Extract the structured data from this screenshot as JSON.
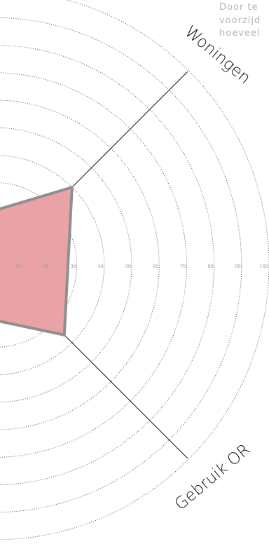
{
  "intro_lines": [
    "Door te",
    "voorzijd",
    "hoeveel"
  ],
  "chart_data": {
    "type": "radar",
    "axes": [
      "Woningen",
      "Gebruik OR"
    ],
    "rlim": [
      0,
      100
    ],
    "ticks": [
      10,
      20,
      30,
      40,
      50,
      60,
      70,
      80,
      90,
      100
    ],
    "series": [
      {
        "values": {
          "Woningen": 40,
          "Gebruik OR": 36
        }
      }
    ],
    "area_color": "#e9a2a6",
    "area_stroke": "#8f8f8f"
  }
}
